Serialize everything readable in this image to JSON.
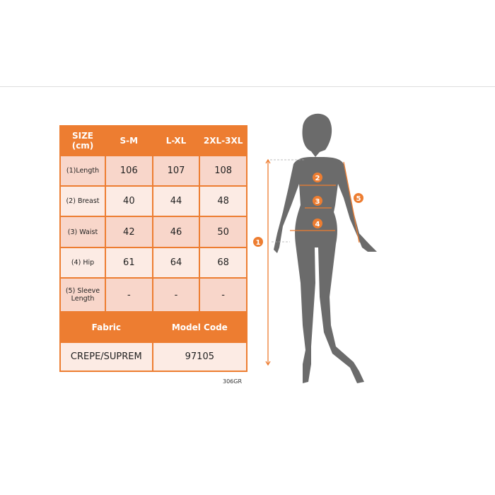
{
  "size_chart": {
    "header": [
      "SIZE (cm)",
      "S-M",
      "L-XL",
      "2XL-3XL"
    ],
    "rows": [
      {
        "label": "(1)Length",
        "values": [
          "106",
          "107",
          "108"
        ]
      },
      {
        "label": "(2) Breast",
        "values": [
          "40",
          "44",
          "48"
        ]
      },
      {
        "label": "(3) Waist",
        "values": [
          "42",
          "46",
          "50"
        ]
      },
      {
        "label": "(4) Hip",
        "values": [
          "61",
          "64",
          "68"
        ]
      },
      {
        "label": "(5) Sleeve Length",
        "values": [
          "-",
          "-",
          "-"
        ]
      }
    ],
    "footer_header": [
      "Fabric",
      "Model Code"
    ],
    "footer_values": [
      "CREPE/SUPREM",
      "97105"
    ],
    "product_code": "306GR"
  },
  "figure": {
    "markers": [
      "1",
      "2",
      "3",
      "4",
      "5"
    ],
    "accent_color": "#ed7d31",
    "silhouette_color": "#6b6b6b"
  }
}
